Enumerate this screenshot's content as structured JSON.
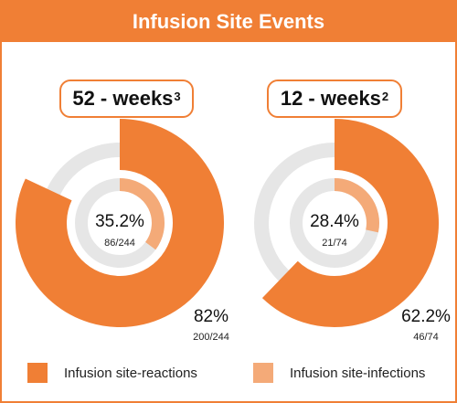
{
  "title": "Infusion Site Events",
  "colors": {
    "reactions": "#f07f35",
    "infections": "#f4aa78",
    "track": "#e6e6e6"
  },
  "chart_data": [
    {
      "type": "donut",
      "period": "52 - weeks",
      "footnote": "3",
      "series": [
        {
          "name": "Infusion site-reactions",
          "percent": 82,
          "percent_label": "82%",
          "count_label": "200/244",
          "ring": "outer"
        },
        {
          "name": "Infusion site-infections",
          "percent": 35.2,
          "percent_label": "35.2%",
          "count_label": "86/244",
          "ring": "inner"
        }
      ]
    },
    {
      "type": "donut",
      "period": "12 - weeks",
      "footnote": "2",
      "series": [
        {
          "name": "Infusion site-reactions",
          "percent": 62.2,
          "percent_label": "62.2%",
          "count_label": "46/74",
          "ring": "outer"
        },
        {
          "name": "Infusion site-infections",
          "percent": 28.4,
          "percent_label": "28.4%",
          "count_label": "21/74",
          "ring": "inner"
        }
      ]
    }
  ],
  "legend": [
    {
      "label": "Infusion site-reactions",
      "color_key": "reactions"
    },
    {
      "label": "Infusion site-infections",
      "color_key": "infections"
    }
  ]
}
